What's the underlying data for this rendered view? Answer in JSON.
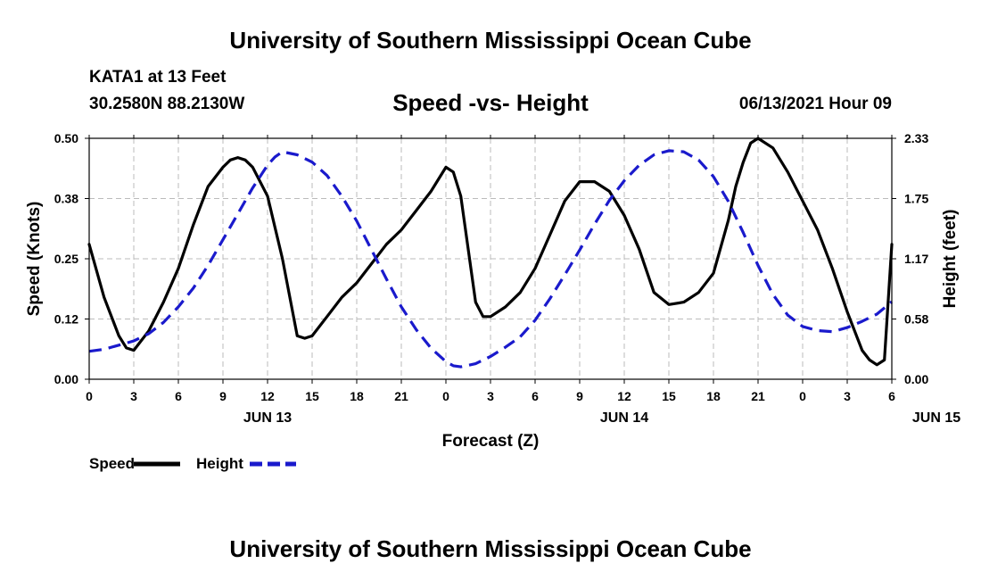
{
  "header": {
    "title_top": "University of Southern Mississippi Ocean Cube",
    "station": "KATA1 at 13 Feet",
    "coords": "30.2580N  88.2130W",
    "date": "06/13/2021 Hour 09"
  },
  "footer": {
    "title_bottom": "University of Southern Mississippi Ocean Cube"
  },
  "colors": {
    "speed": "#000000",
    "height": "#1a1acc",
    "grid": "#bbbbbb"
  },
  "chart_data": {
    "type": "line",
    "title": "Speed -vs- Height",
    "xlabel": "Forecast (Z)",
    "ylabel_left": "Speed (Knots)",
    "ylabel_right": "Height (feet)",
    "x_tick_labels": [
      "0",
      "3",
      "6",
      "9",
      "12",
      "15",
      "18",
      "21",
      "0",
      "3",
      "6",
      "9",
      "12",
      "15",
      "18",
      "21",
      "0",
      "3",
      "6"
    ],
    "date_labels": [
      {
        "label": "JUN 13",
        "hour": 12
      },
      {
        "label": "JUN 14",
        "hour": 36
      },
      {
        "label": "JUN 15",
        "hour": 57
      }
    ],
    "xlim": [
      0,
      54
    ],
    "ylim_left": [
      0,
      0.5
    ],
    "left_ticks": [
      0.0,
      0.125,
      0.25,
      0.375,
      0.5
    ],
    "left_tick_labels": [
      "0.00",
      "0.12",
      "0.25",
      "0.38",
      "0.50"
    ],
    "ylim_right": [
      0,
      2.33
    ],
    "right_tick_labels": [
      "0.00",
      "0.58",
      "1.17",
      "1.75",
      "2.33"
    ],
    "legend": [
      {
        "name": "Speed",
        "style": "solid"
      },
      {
        "name": "Height",
        "style": "dashed"
      }
    ],
    "series": [
      {
        "name": "Speed",
        "axis": "left",
        "style": "solid",
        "x": [
          0,
          1,
          2,
          2.5,
          3,
          4,
          5,
          6,
          7,
          8,
          9,
          9.5,
          10,
          10.5,
          11,
          12,
          13,
          14,
          14.5,
          15,
          16,
          17,
          18,
          19,
          20,
          21,
          22,
          23,
          24,
          24.5,
          25,
          26,
          26.5,
          27,
          28,
          29,
          30,
          31,
          32,
          33,
          34,
          35,
          36,
          37,
          38,
          39,
          40,
          41,
          42,
          43,
          43.5,
          44,
          44.5,
          45,
          46,
          47,
          48,
          49,
          50,
          51,
          52,
          52.5,
          53,
          53.5,
          54
        ],
        "y": [
          0.28,
          0.17,
          0.09,
          0.065,
          0.06,
          0.1,
          0.16,
          0.23,
          0.32,
          0.4,
          0.44,
          0.455,
          0.46,
          0.455,
          0.44,
          0.38,
          0.25,
          0.09,
          0.085,
          0.09,
          0.13,
          0.17,
          0.2,
          0.24,
          0.28,
          0.31,
          0.35,
          0.39,
          0.44,
          0.43,
          0.38,
          0.16,
          0.13,
          0.13,
          0.15,
          0.18,
          0.23,
          0.3,
          0.37,
          0.41,
          0.41,
          0.39,
          0.34,
          0.27,
          0.18,
          0.155,
          0.16,
          0.18,
          0.22,
          0.33,
          0.4,
          0.45,
          0.49,
          0.5,
          0.48,
          0.43,
          0.37,
          0.31,
          0.23,
          0.14,
          0.06,
          0.04,
          0.03,
          0.04,
          0.28
        ]
      },
      {
        "name": "Height",
        "axis": "right",
        "style": "dashed",
        "x": [
          0,
          1,
          2,
          3,
          4,
          5,
          6,
          7,
          8,
          9,
          10,
          11,
          12,
          12.5,
          13,
          14,
          15,
          16,
          17,
          18,
          19,
          20,
          21,
          22,
          23,
          24,
          24.5,
          25,
          26,
          27,
          28,
          29,
          30,
          31,
          32,
          33,
          34,
          35,
          36,
          37,
          38,
          39,
          40,
          41,
          42,
          43,
          44,
          45,
          46,
          47,
          48,
          49,
          50,
          51,
          52,
          53,
          54
        ],
        "y": [
          0.27,
          0.29,
          0.33,
          0.37,
          0.44,
          0.55,
          0.7,
          0.88,
          1.1,
          1.35,
          1.6,
          1.85,
          2.07,
          2.15,
          2.2,
          2.17,
          2.1,
          1.97,
          1.77,
          1.53,
          1.25,
          0.97,
          0.7,
          0.48,
          0.3,
          0.17,
          0.13,
          0.12,
          0.15,
          0.22,
          0.31,
          0.41,
          0.57,
          0.78,
          1.01,
          1.25,
          1.5,
          1.73,
          1.92,
          2.07,
          2.17,
          2.21,
          2.2,
          2.12,
          1.96,
          1.72,
          1.42,
          1.1,
          0.82,
          0.62,
          0.51,
          0.47,
          0.46,
          0.5,
          0.56,
          0.63,
          0.75
        ]
      }
    ]
  }
}
